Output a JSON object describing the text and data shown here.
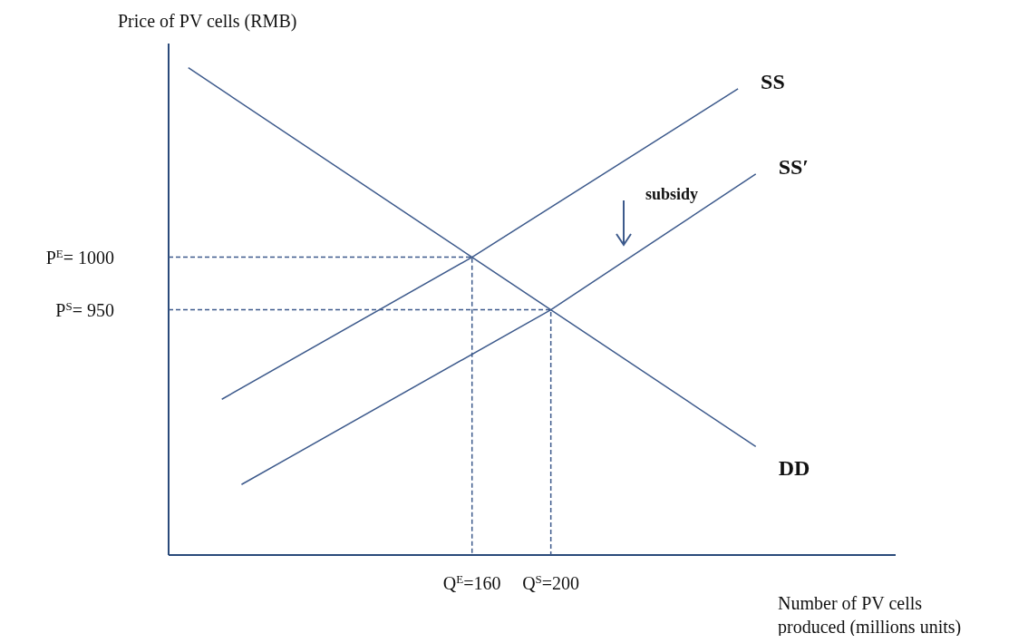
{
  "chart_data": {
    "type": "line",
    "ylabel": "Price of PV cells (RMB)",
    "xlabel": "Number of PV cells produced (millions units)",
    "xlim": [
      6,
      375
    ],
    "ylim": [
      717,
      1203
    ],
    "xticks": [
      {
        "value": 160,
        "label": "Q$^{E}$=160"
      },
      {
        "value": 200,
        "label": "Q$^{S}$=200"
      }
    ],
    "yticks": [
      {
        "value": 1000,
        "label": "P$^{E}$= 1000"
      },
      {
        "value": 950,
        "label": "P$^{S}$= 950"
      }
    ],
    "series": [
      {
        "name": "SS",
        "color": "#3d5a8c",
        "x": [
          33,
          160,
          295
        ],
        "values": [
          865,
          1000,
          1160
        ]
      },
      {
        "name": "SS′",
        "color": "#3d5a8c",
        "x": [
          43,
          200,
          304
        ],
        "values": [
          784,
          950,
          1079
        ]
      },
      {
        "name": "DD",
        "color": "#3d5a8c",
        "x": [
          16,
          160,
          200,
          304
        ],
        "values": [
          1180,
          1000,
          950,
          820
        ]
      },
      {
        "color": "#3d5a8c",
        "line_style": "dashed",
        "x": [
          6,
          160,
          160
        ],
        "values": [
          1000,
          1000,
          717
        ]
      },
      {
        "color": "#3d5a8c",
        "line_style": "dashed",
        "x": [
          6,
          200,
          200
        ],
        "values": [
          950,
          950,
          717
        ]
      }
    ],
    "annotations": [
      "subsidy"
    ]
  }
}
